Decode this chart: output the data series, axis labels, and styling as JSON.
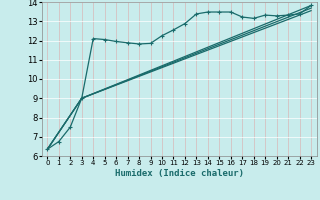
{
  "xlabel": "Humidex (Indice chaleur)",
  "bg_color": "#c8ecec",
  "grid_color": "#b8d8d8",
  "line_color": "#1a6b6b",
  "xlim": [
    -0.5,
    23.5
  ],
  "ylim": [
    6,
    14
  ],
  "xticks": [
    0,
    1,
    2,
    3,
    4,
    5,
    6,
    7,
    8,
    9,
    10,
    11,
    12,
    13,
    14,
    15,
    16,
    17,
    18,
    19,
    20,
    21,
    22,
    23
  ],
  "yticks": [
    6,
    7,
    8,
    9,
    10,
    11,
    12,
    13,
    14
  ],
  "series1_x": [
    0,
    1,
    2,
    3,
    4,
    5,
    6,
    7,
    8,
    9,
    10,
    11,
    12,
    13,
    14,
    15,
    16,
    17,
    18,
    19,
    20,
    21,
    22,
    23
  ],
  "series1_y": [
    6.35,
    6.75,
    7.5,
    9.0,
    12.1,
    12.05,
    11.95,
    11.88,
    11.82,
    11.85,
    12.25,
    12.55,
    12.88,
    13.38,
    13.48,
    13.48,
    13.48,
    13.22,
    13.15,
    13.32,
    13.28,
    13.32,
    13.38,
    13.82
  ],
  "series2_x": [
    0,
    3,
    23
  ],
  "series2_y": [
    6.35,
    9.0,
    13.82
  ],
  "series3_x": [
    0,
    3,
    23
  ],
  "series3_y": [
    6.35,
    9.0,
    13.68
  ],
  "series4_x": [
    0,
    3,
    23
  ],
  "series4_y": [
    6.35,
    9.0,
    13.55
  ]
}
